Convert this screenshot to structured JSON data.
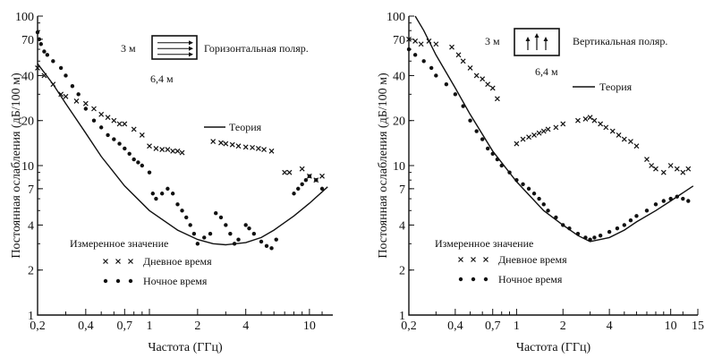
{
  "chart_data": [
    {
      "type": "scatter",
      "x_scale": "log",
      "y_scale": "log",
      "xlim": [
        0.2,
        14
      ],
      "ylim": [
        1,
        100
      ],
      "xlabel": "Частота (ГГц)",
      "ylabel": "Постоянная ослабления (дБ/100 м)",
      "x_ticks": [
        0.2,
        0.4,
        0.7,
        1,
        2,
        4,
        10
      ],
      "x_tick_labels": [
        "0,2",
        "0,4",
        "0,7",
        "1",
        "2",
        "4",
        "10"
      ],
      "y_ticks": [
        1,
        2,
        4,
        7,
        10,
        20,
        40,
        70,
        100
      ],
      "y_tick_labels": [
        "1",
        "2",
        "4",
        "7",
        "10",
        "20",
        "40",
        "70",
        "100"
      ],
      "annotations": {
        "width_label": "3 м",
        "height_label": "6,4 м",
        "polarization": "Горизонтальная поляр.",
        "theory_label": "Теория",
        "measured_label": "Измеренное значение"
      },
      "series": [
        {
          "name": "Теория",
          "kind": "line",
          "x": [
            0.2,
            0.25,
            0.3,
            0.4,
            0.5,
            0.7,
            1,
            1.5,
            2,
            2.5,
            3,
            4,
            5,
            6,
            8,
            10,
            13
          ],
          "y": [
            48,
            35,
            26,
            16.5,
            11.5,
            7.3,
            5,
            3.7,
            3.2,
            3,
            2.95,
            3.05,
            3.3,
            3.7,
            4.6,
            5.6,
            7.2
          ]
        },
        {
          "name": "Дневное время",
          "kind": "cross",
          "x": [
            0.2,
            0.22,
            0.25,
            0.28,
            0.3,
            0.35,
            0.4,
            0.45,
            0.5,
            0.55,
            0.6,
            0.65,
            0.7,
            0.8,
            0.9,
            1.0,
            1.1,
            1.2,
            1.3,
            1.4,
            1.5,
            1.6,
            2.5,
            2.8,
            3.0,
            3.3,
            3.6,
            4.0,
            4.4,
            4.8,
            5.2,
            5.8,
            7.0,
            7.5,
            9.0,
            10.0,
            11.0,
            12.0
          ],
          "y": [
            45,
            40,
            35,
            30,
            29,
            27,
            26,
            24,
            22,
            21,
            20,
            19,
            19,
            17.5,
            16,
            13.5,
            13,
            12.8,
            12.8,
            12.5,
            12.5,
            12.2,
            14.5,
            14.2,
            14,
            13.8,
            13.5,
            13.3,
            13.2,
            13,
            12.8,
            12.5,
            9,
            9,
            9.5,
            8.5,
            8,
            8.5
          ]
        },
        {
          "name": "Ночное время",
          "kind": "dot",
          "x": [
            0.2,
            0.205,
            0.21,
            0.22,
            0.23,
            0.25,
            0.28,
            0.3,
            0.33,
            0.36,
            0.4,
            0.45,
            0.5,
            0.55,
            0.6,
            0.65,
            0.7,
            0.75,
            0.8,
            0.85,
            0.9,
            1.0,
            1.05,
            1.1,
            1.2,
            1.3,
            1.4,
            1.5,
            1.6,
            1.7,
            1.8,
            1.9,
            2.0,
            2.2,
            2.4,
            2.6,
            2.8,
            3.0,
            3.2,
            3.4,
            3.6,
            4.0,
            4.2,
            4.5,
            5.0,
            5.4,
            5.8,
            6.2,
            8.0,
            8.5,
            9.0,
            9.5,
            10.0,
            11.0,
            12.0
          ],
          "y": [
            78,
            70,
            65,
            58,
            55,
            50,
            45,
            40,
            34,
            30,
            24,
            20,
            18,
            16,
            15,
            14,
            13,
            12,
            11,
            10.5,
            10,
            9,
            6.5,
            6,
            6.5,
            7,
            6.5,
            5.5,
            5,
            4.5,
            4,
            3.5,
            3,
            3.3,
            3.5,
            4.8,
            4.5,
            4,
            3.5,
            3,
            3.2,
            4,
            3.8,
            3.5,
            3.1,
            2.9,
            2.8,
            3.2,
            6.5,
            7,
            7.5,
            8,
            8.5,
            8,
            7
          ]
        }
      ]
    },
    {
      "type": "scatter",
      "x_scale": "log",
      "y_scale": "log",
      "xlim": [
        0.2,
        15
      ],
      "ylim": [
        1,
        100
      ],
      "xlabel": "Частота (ГГц)",
      "ylabel": "Постоянная ослабления (дБ/100 м)",
      "x_ticks": [
        0.2,
        0.4,
        0.7,
        1,
        2,
        4,
        10,
        15
      ],
      "x_tick_labels": [
        "0,2",
        "0,4",
        "0,7",
        "1",
        "2",
        "4",
        "10",
        "15"
      ],
      "y_ticks": [
        1,
        2,
        4,
        7,
        10,
        20,
        40,
        70,
        100
      ],
      "y_tick_labels": [
        "1",
        "2",
        "4",
        "7",
        "10",
        "20",
        "40",
        "70",
        "100"
      ],
      "annotations": {
        "width_label": "3 м",
        "height_label": "6,4 м",
        "polarization": "Вертикальная поляр.",
        "theory_label": "Теория",
        "measured_label": "Измеренное значение"
      },
      "series": [
        {
          "name": "Теория",
          "kind": "line",
          "x": [
            0.22,
            0.25,
            0.3,
            0.4,
            0.5,
            0.7,
            1,
            1.5,
            2,
            2.5,
            3,
            4,
            5,
            6,
            8,
            10,
            14
          ],
          "y": [
            100,
            80,
            55,
            33,
            22,
            12.5,
            7.8,
            5,
            4,
            3.4,
            3.1,
            3.3,
            3.7,
            4.2,
            5,
            5.8,
            7.3
          ]
        },
        {
          "name": "Дневное время",
          "kind": "cross",
          "x": [
            0.2,
            0.22,
            0.24,
            0.27,
            0.3,
            0.38,
            0.42,
            0.45,
            0.5,
            0.55,
            0.6,
            0.65,
            0.7,
            0.75,
            1.0,
            1.1,
            1.2,
            1.3,
            1.4,
            1.5,
            1.6,
            1.8,
            2.0,
            2.5,
            2.8,
            3.0,
            3.2,
            3.5,
            3.8,
            4.2,
            4.6,
            5.0,
            5.5,
            6.0,
            7.0,
            7.5,
            8.0,
            9.0,
            10.0,
            11.0,
            12.0,
            13.0
          ],
          "y": [
            70,
            68,
            65,
            68,
            65,
            62,
            55,
            50,
            45,
            40,
            38,
            35,
            33,
            28,
            14,
            15,
            15.5,
            16,
            16.5,
            17,
            17.5,
            18,
            19,
            20,
            20.5,
            21,
            20,
            19,
            18,
            17,
            16,
            15,
            14.5,
            13.5,
            11,
            10,
            9.5,
            9,
            10,
            9.5,
            9,
            9.5
          ]
        },
        {
          "name": "Ночное время",
          "kind": "dot",
          "x": [
            0.2,
            0.22,
            0.25,
            0.28,
            0.3,
            0.35,
            0.4,
            0.45,
            0.5,
            0.55,
            0.6,
            0.65,
            0.7,
            0.75,
            0.8,
            0.9,
            1.0,
            1.1,
            1.2,
            1.3,
            1.4,
            1.5,
            1.6,
            1.8,
            2.0,
            2.2,
            2.5,
            2.8,
            3.0,
            3.2,
            3.5,
            4.0,
            4.5,
            5.0,
            5.5,
            6.0,
            7.0,
            8.0,
            9.0,
            10.0,
            11.0,
            12.0,
            13.0
          ],
          "y": [
            60,
            55,
            50,
            45,
            40,
            35,
            30,
            25,
            20,
            17,
            15,
            13,
            12,
            11,
            10,
            9,
            8,
            7.5,
            7,
            6.5,
            6,
            5.5,
            5,
            4.5,
            4,
            3.8,
            3.5,
            3.3,
            3.2,
            3.3,
            3.4,
            3.6,
            3.8,
            4,
            4.3,
            4.6,
            5,
            5.5,
            5.8,
            6,
            6.2,
            6,
            5.8
          ]
        }
      ]
    }
  ]
}
